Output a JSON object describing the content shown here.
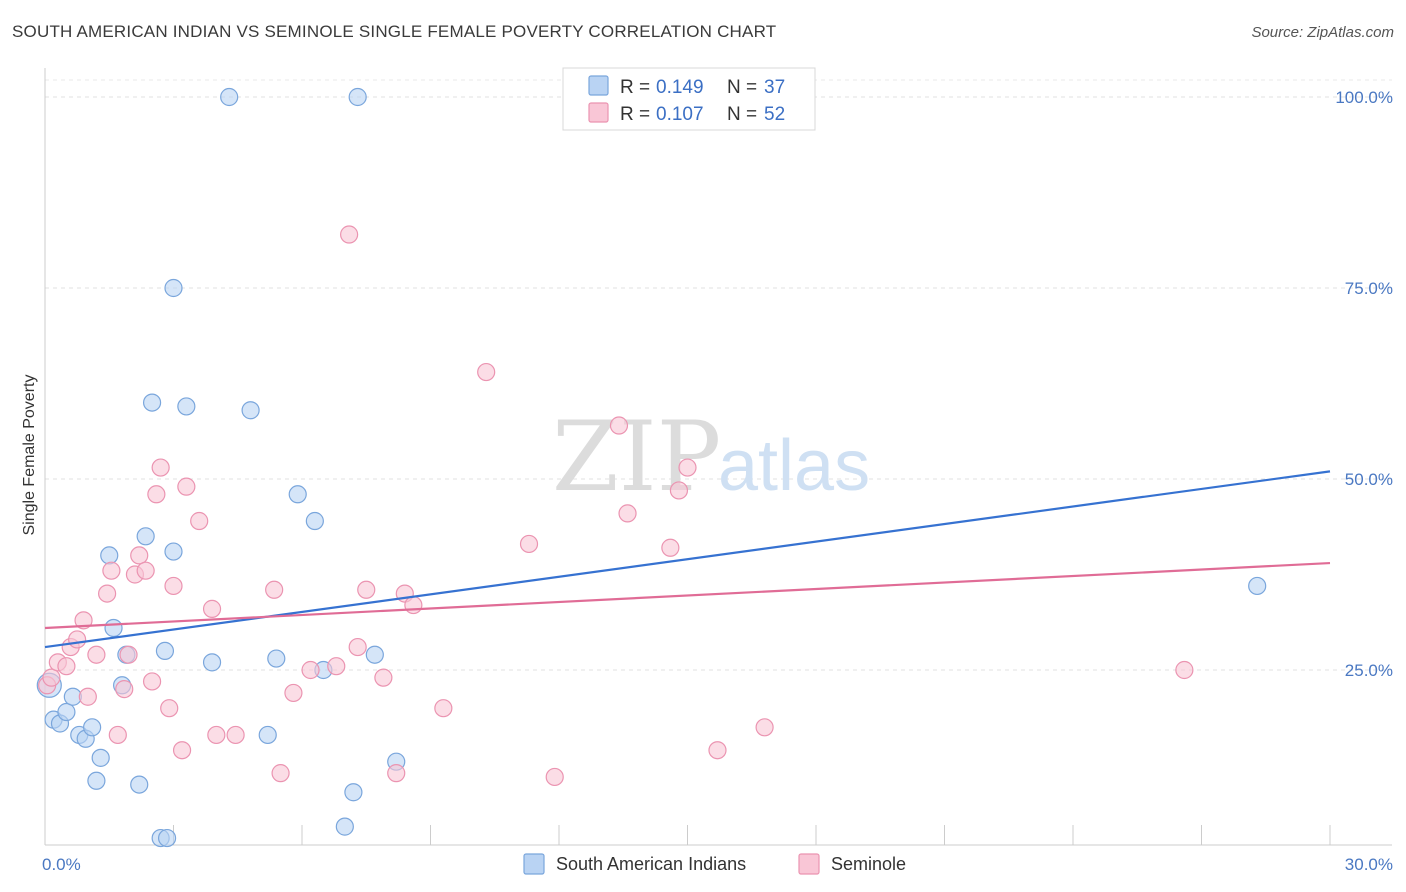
{
  "title": "SOUTH AMERICAN INDIAN VS SEMINOLE SINGLE FEMALE POVERTY CORRELATION CHART",
  "source": "Source: ZipAtlas.com",
  "watermark": {
    "zip": "ZIP",
    "atlas": "atlas"
  },
  "legend": {
    "rows": [
      {
        "r_label": "R = ",
        "r_value": "0.149",
        "n_label": "N = ",
        "n_value": "37"
      },
      {
        "r_label": "R = ",
        "r_value": "0.107",
        "n_label": "N = ",
        "n_value": "52"
      }
    ]
  },
  "colors": {
    "blue_fill": "#b9d3f3",
    "blue_stroke": "#7aa6dc",
    "blue_line": "#3672d1",
    "pink_fill": "#f9c6d6",
    "pink_stroke": "#eb94b1",
    "pink_line": "#e06c96"
  },
  "chart_data": {
    "type": "scatter",
    "title": "SOUTH AMERICAN INDIAN VS SEMINOLE SINGLE FEMALE POVERTY CORRELATION CHART",
    "xlabel": "",
    "ylabel": "Single Female Poverty",
    "xlim": [
      0,
      30
    ],
    "ylim": [
      0,
      105
    ],
    "x_tick_labels": [
      "0.0%",
      "30.0%"
    ],
    "y_ticks": [
      25,
      50,
      75,
      100
    ],
    "y_tick_labels": [
      "25.0%",
      "50.0%",
      "75.0%",
      "100.0%"
    ],
    "grid": true,
    "legend_position": "top-center",
    "series": [
      {
        "name": "South American Indians",
        "r": 0.149,
        "n": 37,
        "trend": {
          "x": [
            0,
            30
          ],
          "y": [
            28.0,
            51.0
          ]
        },
        "points": [
          [
            0.1,
            23.0
          ],
          [
            0.2,
            18.5
          ],
          [
            0.35,
            18.0
          ],
          [
            0.5,
            19.5
          ],
          [
            0.65,
            21.5
          ],
          [
            0.8,
            16.5
          ],
          [
            0.95,
            16.0
          ],
          [
            1.1,
            17.5
          ],
          [
            1.2,
            10.5
          ],
          [
            1.3,
            13.5
          ],
          [
            1.5,
            40.0
          ],
          [
            1.6,
            30.5
          ],
          [
            1.8,
            23.0
          ],
          [
            1.9,
            27.0
          ],
          [
            2.2,
            10.0
          ],
          [
            2.35,
            42.5
          ],
          [
            2.5,
            60.0
          ],
          [
            2.7,
            3.0
          ],
          [
            2.8,
            27.5
          ],
          [
            2.85,
            3.0
          ],
          [
            3.0,
            40.5
          ],
          [
            3.0,
            75.0
          ],
          [
            3.3,
            59.5
          ],
          [
            3.9,
            26.0
          ],
          [
            4.3,
            100.0
          ],
          [
            4.8,
            59.0
          ],
          [
            5.2,
            16.5
          ],
          [
            5.4,
            26.5
          ],
          [
            5.9,
            48.0
          ],
          [
            6.3,
            44.5
          ],
          [
            6.5,
            25.0
          ],
          [
            7.0,
            4.5
          ],
          [
            7.2,
            9.0
          ],
          [
            7.3,
            100.0
          ],
          [
            7.7,
            27.0
          ],
          [
            8.2,
            13.0
          ],
          [
            28.3,
            36.0
          ]
        ]
      },
      {
        "name": "Seminole",
        "r": 0.107,
        "n": 52,
        "trend": {
          "x": [
            0,
            30
          ],
          "y": [
            30.5,
            39.0
          ]
        },
        "points": [
          [
            0.05,
            23.0
          ],
          [
            0.15,
            24.0
          ],
          [
            0.3,
            26.0
          ],
          [
            0.5,
            25.5
          ],
          [
            0.6,
            28.0
          ],
          [
            0.75,
            29.0
          ],
          [
            0.9,
            31.5
          ],
          [
            1.0,
            21.5
          ],
          [
            1.2,
            27.0
          ],
          [
            1.45,
            35.0
          ],
          [
            1.55,
            38.0
          ],
          [
            1.7,
            16.5
          ],
          [
            1.85,
            22.5
          ],
          [
            1.95,
            27.0
          ],
          [
            2.1,
            37.5
          ],
          [
            2.2,
            40.0
          ],
          [
            2.35,
            38.0
          ],
          [
            2.5,
            23.5
          ],
          [
            2.6,
            48.0
          ],
          [
            2.7,
            51.5
          ],
          [
            2.9,
            20.0
          ],
          [
            3.0,
            36.0
          ],
          [
            3.2,
            14.5
          ],
          [
            3.3,
            49.0
          ],
          [
            3.6,
            44.5
          ],
          [
            3.9,
            33.0
          ],
          [
            4.0,
            16.5
          ],
          [
            4.45,
            16.5
          ],
          [
            5.35,
            35.5
          ],
          [
            5.5,
            11.5
          ],
          [
            5.8,
            22.0
          ],
          [
            6.2,
            25.0
          ],
          [
            6.8,
            25.5
          ],
          [
            7.1,
            82.0
          ],
          [
            7.3,
            28.0
          ],
          [
            7.5,
            35.5
          ],
          [
            7.9,
            24.0
          ],
          [
            8.2,
            11.5
          ],
          [
            8.4,
            35.0
          ],
          [
            8.6,
            33.5
          ],
          [
            9.3,
            20.0
          ],
          [
            10.3,
            64.0
          ],
          [
            11.3,
            41.5
          ],
          [
            11.9,
            11.0
          ],
          [
            13.4,
            57.0
          ],
          [
            13.6,
            45.5
          ],
          [
            14.6,
            41.0
          ],
          [
            14.8,
            48.5
          ],
          [
            15.0,
            51.5
          ],
          [
            15.7,
            14.5
          ],
          [
            16.8,
            17.5
          ],
          [
            26.6,
            25.0
          ]
        ]
      }
    ]
  }
}
